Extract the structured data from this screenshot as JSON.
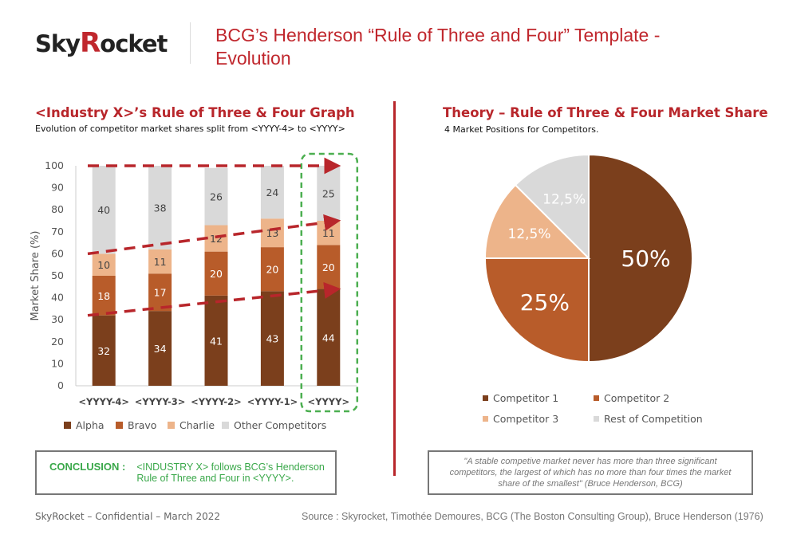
{
  "header": {
    "logo_text": "SkyRocket",
    "title": "BCG’s Henderson “Rule of Three and Four” Template - Evolution"
  },
  "left": {
    "title": "<Industry X>’s Rule of Three & Four Graph",
    "subtitle": "Evolution of competitor market shares split from <YYYY-4> to <YYYY>"
  },
  "right": {
    "title": "Theory – Rule of Three & Four Market Share",
    "subtitle": "4 Market Positions for Competitors."
  },
  "conclusion": {
    "label": "CONCLUSION :",
    "text": "<INDUSTRY X> follows BCG’s Henderson Rule of Three and Four in <YYYY>."
  },
  "quote": "\"A stable competive market never has more than three significant competitors, the largest of which has no more than four times the market share of the smallest\" (Bruce Henderson, BCG)",
  "footer": {
    "left": "SkyRocket – Confidential – March 2022",
    "right": "Source : Skyrocket, Timothée Demoures,  BCG (The Boston Consulting Group), Bruce Henderson (1976)"
  },
  "chart_data": [
    {
      "type": "bar",
      "stacked": true,
      "categories": [
        "<YYYY-4>",
        "<YYYY-3>",
        "<YYYY-2>",
        "<YYYY-1>",
        "<YYYY>"
      ],
      "ylabel": "Market Share (%)",
      "ylim": [
        0,
        100
      ],
      "yticks": [
        0,
        10,
        20,
        30,
        40,
        50,
        60,
        70,
        80,
        90,
        100
      ],
      "legend": "bottom",
      "highlighted_category": "<YYYY>",
      "series": [
        {
          "name": "Alpha",
          "values": [
            32,
            34,
            41,
            43,
            44
          ],
          "color": "#7b3f1c"
        },
        {
          "name": "Bravo",
          "values": [
            18,
            17,
            20,
            20,
            20
          ],
          "color": "#b85c2a"
        },
        {
          "name": "Charlie",
          "values": [
            10,
            11,
            12,
            13,
            11
          ],
          "color": "#edb48a"
        },
        {
          "name": "Other Competitors",
          "values": [
            40,
            38,
            26,
            24,
            25
          ],
          "color": "#d9d9d9"
        }
      ],
      "trend_arrows": [
        {
          "from": 100,
          "to": 100
        },
        {
          "from": 60,
          "to": 75
        },
        {
          "from": 32,
          "to": 44
        }
      ],
      "arrow_color": "#b8262b",
      "highlight_color": "#4caf50"
    },
    {
      "type": "pie",
      "legend": "bottom",
      "slices": [
        {
          "name": "Competitor 1",
          "value": 50,
          "label": "50%",
          "color": "#7b3f1c"
        },
        {
          "name": "Competitor 2",
          "value": 25,
          "label": "25%",
          "color": "#b85c2a"
        },
        {
          "name": "Competitor 3",
          "value": 12.5,
          "label": "12,5%",
          "color": "#edb48a"
        },
        {
          "name": "Rest of Competition",
          "value": 12.5,
          "label": "12,5%",
          "color": "#d9d9d9"
        }
      ]
    }
  ]
}
